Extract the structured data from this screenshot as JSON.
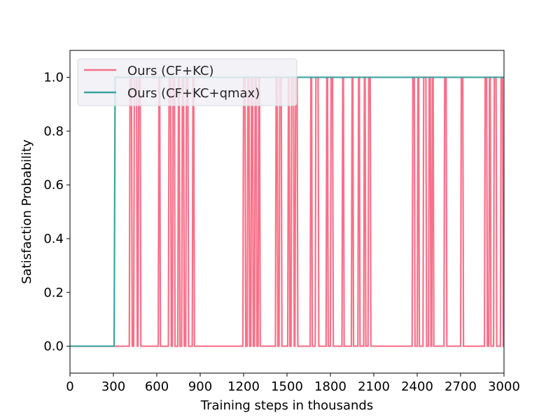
{
  "chart_data": {
    "type": "line",
    "title": "",
    "xlabel": "Training steps in thousands",
    "ylabel": "Satisfaction Probability",
    "xlim": [
      0,
      3000
    ],
    "ylim": [
      -0.1,
      1.1
    ],
    "x_ticks": [
      0,
      300,
      600,
      900,
      1200,
      1500,
      1800,
      2100,
      2400,
      2700,
      3000
    ],
    "y_ticks": [
      0.0,
      0.2,
      0.4,
      0.6,
      0.8,
      1.0
    ],
    "y_tick_labels": [
      "0.0",
      "0.2",
      "0.4",
      "0.6",
      "0.8",
      "1.0"
    ],
    "grid": false,
    "legend_position": "top-left",
    "series": [
      {
        "name": "Ours (CF+KC)",
        "color": "#f77189",
        "step_points": [
          [
            0,
            0
          ],
          [
            410,
            0
          ],
          [
            415,
            1
          ],
          [
            425,
            1
          ],
          [
            430,
            0
          ],
          [
            440,
            0
          ],
          [
            445,
            1
          ],
          [
            460,
            1
          ],
          [
            465,
            0
          ],
          [
            470,
            0
          ],
          [
            475,
            1
          ],
          [
            485,
            1
          ],
          [
            490,
            0
          ],
          [
            610,
            0
          ],
          [
            615,
            1
          ],
          [
            620,
            1
          ],
          [
            625,
            0
          ],
          [
            680,
            0
          ],
          [
            685,
            1
          ],
          [
            695,
            1
          ],
          [
            700,
            0
          ],
          [
            708,
            0
          ],
          [
            712,
            1
          ],
          [
            722,
            1
          ],
          [
            726,
            0
          ],
          [
            745,
            0
          ],
          [
            750,
            1
          ],
          [
            755,
            1
          ],
          [
            760,
            0
          ],
          [
            772,
            0
          ],
          [
            777,
            1
          ],
          [
            785,
            1
          ],
          [
            790,
            0
          ],
          [
            800,
            0
          ],
          [
            805,
            1
          ],
          [
            815,
            1
          ],
          [
            820,
            0
          ],
          [
            845,
            0
          ],
          [
            850,
            1
          ],
          [
            855,
            1
          ],
          [
            860,
            0
          ],
          [
            1195,
            0
          ],
          [
            1200,
            1
          ],
          [
            1210,
            1
          ],
          [
            1215,
            0
          ],
          [
            1225,
            0
          ],
          [
            1230,
            1
          ],
          [
            1237,
            1
          ],
          [
            1242,
            0
          ],
          [
            1250,
            0
          ],
          [
            1255,
            1
          ],
          [
            1262,
            1
          ],
          [
            1267,
            0
          ],
          [
            1275,
            0
          ],
          [
            1280,
            1
          ],
          [
            1287,
            1
          ],
          [
            1292,
            0
          ],
          [
            1300,
            0
          ],
          [
            1305,
            1
          ],
          [
            1310,
            1
          ],
          [
            1315,
            0
          ],
          [
            1420,
            0
          ],
          [
            1425,
            1
          ],
          [
            1432,
            1
          ],
          [
            1437,
            0
          ],
          [
            1445,
            0
          ],
          [
            1450,
            1
          ],
          [
            1460,
            1
          ],
          [
            1465,
            0
          ],
          [
            1505,
            0
          ],
          [
            1510,
            1
          ],
          [
            1515,
            1
          ],
          [
            1520,
            0
          ],
          [
            1528,
            0
          ],
          [
            1533,
            1
          ],
          [
            1545,
            1
          ],
          [
            1550,
            0
          ],
          [
            1555,
            0
          ],
          [
            1560,
            1
          ],
          [
            1570,
            1
          ],
          [
            1575,
            0
          ],
          [
            1660,
            0
          ],
          [
            1665,
            1
          ],
          [
            1670,
            1
          ],
          [
            1675,
            0
          ],
          [
            1695,
            0
          ],
          [
            1700,
            1
          ],
          [
            1715,
            1
          ],
          [
            1720,
            0
          ],
          [
            1770,
            0
          ],
          [
            1775,
            1
          ],
          [
            1780,
            1
          ],
          [
            1785,
            0
          ],
          [
            1800,
            0
          ],
          [
            1805,
            1
          ],
          [
            1815,
            1
          ],
          [
            1820,
            0
          ],
          [
            1880,
            0
          ],
          [
            1885,
            1
          ],
          [
            1890,
            1
          ],
          [
            1895,
            0
          ],
          [
            1945,
            0
          ],
          [
            1950,
            1
          ],
          [
            1955,
            1
          ],
          [
            1960,
            0
          ],
          [
            1990,
            0
          ],
          [
            1995,
            1
          ],
          [
            2000,
            1
          ],
          [
            2005,
            0
          ],
          [
            2030,
            0
          ],
          [
            2035,
            1
          ],
          [
            2040,
            1
          ],
          [
            2045,
            0
          ],
          [
            2060,
            0
          ],
          [
            2065,
            1
          ],
          [
            2075,
            1
          ],
          [
            2080,
            0
          ],
          [
            2365,
            0
          ],
          [
            2370,
            1
          ],
          [
            2380,
            1
          ],
          [
            2385,
            0
          ],
          [
            2400,
            0
          ],
          [
            2405,
            1
          ],
          [
            2410,
            1
          ],
          [
            2415,
            0
          ],
          [
            2440,
            0
          ],
          [
            2445,
            1
          ],
          [
            2460,
            1
          ],
          [
            2465,
            0
          ],
          [
            2478,
            0
          ],
          [
            2483,
            1
          ],
          [
            2490,
            1
          ],
          [
            2495,
            0
          ],
          [
            2500,
            0
          ],
          [
            2505,
            1
          ],
          [
            2510,
            1
          ],
          [
            2515,
            0
          ],
          [
            2585,
            0
          ],
          [
            2590,
            1
          ],
          [
            2600,
            1
          ],
          [
            2605,
            0
          ],
          [
            2700,
            0
          ],
          [
            2705,
            1
          ],
          [
            2715,
            1
          ],
          [
            2720,
            0
          ],
          [
            2865,
            0
          ],
          [
            2870,
            1
          ],
          [
            2880,
            1
          ],
          [
            2885,
            0
          ],
          [
            2895,
            0
          ],
          [
            2900,
            1
          ],
          [
            2905,
            1
          ],
          [
            2910,
            0
          ],
          [
            2928,
            0
          ],
          [
            2933,
            1
          ],
          [
            2945,
            1
          ],
          [
            2950,
            0
          ],
          [
            2975,
            0
          ],
          [
            2980,
            1
          ],
          [
            2990,
            1
          ],
          [
            2995,
            0
          ],
          [
            3000,
            0
          ]
        ]
      },
      {
        "name": "Ours (CF+KC+qmax)",
        "color": "#3ba3a0",
        "step_points": [
          [
            0,
            0
          ],
          [
            305,
            0
          ],
          [
            312,
            1
          ],
          [
            3000,
            1
          ]
        ]
      }
    ]
  }
}
